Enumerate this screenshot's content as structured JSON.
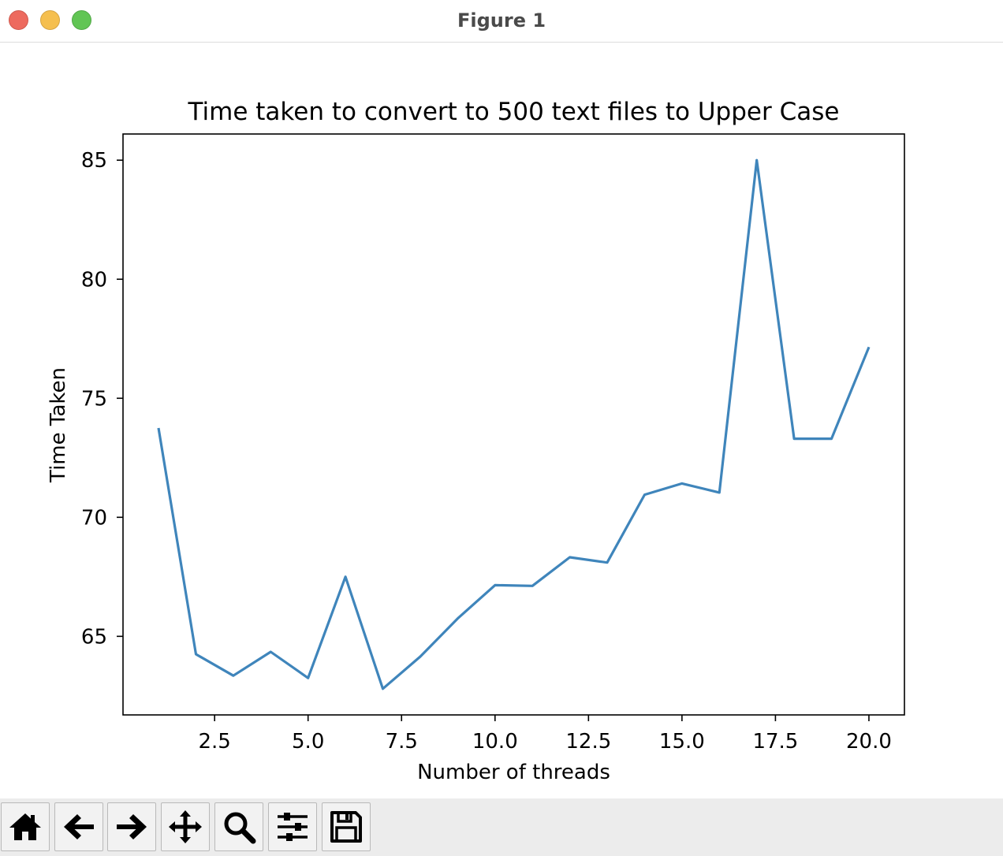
{
  "window": {
    "title": "Figure 1"
  },
  "toolbar": {
    "buttons": [
      {
        "name": "home-button",
        "icon": "home-icon"
      },
      {
        "name": "back-button",
        "icon": "arrow-left-icon"
      },
      {
        "name": "forward-button",
        "icon": "arrow-right-icon"
      },
      {
        "name": "pan-button",
        "icon": "move-icon"
      },
      {
        "name": "zoom-button",
        "icon": "magnifier-icon"
      },
      {
        "name": "configure-subplots-button",
        "icon": "sliders-icon"
      },
      {
        "name": "save-button",
        "icon": "floppy-disk-icon"
      }
    ]
  },
  "chart_data": {
    "type": "line",
    "title": "Time taken to convert to 500 text files to Upper Case",
    "xlabel": "Number of threads",
    "ylabel": "Time Taken",
    "x": [
      1,
      2,
      3,
      4,
      5,
      6,
      7,
      8,
      9,
      10,
      11,
      12,
      13,
      14,
      15,
      16,
      17,
      18,
      19,
      20
    ],
    "series": [
      {
        "values": [
          73.75,
          64.25,
          63.35,
          64.35,
          63.25,
          67.5,
          62.8,
          64.15,
          65.75,
          67.15,
          67.12,
          68.32,
          68.1,
          70.95,
          71.42,
          71.04,
          85.0,
          73.3,
          73.3,
          77.15
        ],
        "color": "#3f85bb"
      }
    ],
    "xlim": [
      0.05,
      20.95
    ],
    "ylim": [
      61.7,
      86.1
    ],
    "xticks": [
      2.5,
      5.0,
      7.5,
      10.0,
      12.5,
      15.0,
      17.5,
      20.0
    ],
    "xtick_labels": [
      "2.5",
      "5.0",
      "7.5",
      "10.0",
      "12.5",
      "15.0",
      "17.5",
      "20.0"
    ],
    "yticks": [
      65,
      70,
      75,
      80,
      85
    ],
    "ytick_labels": [
      "65",
      "70",
      "75",
      "80",
      "85"
    ],
    "grid": false,
    "legend": "none"
  }
}
